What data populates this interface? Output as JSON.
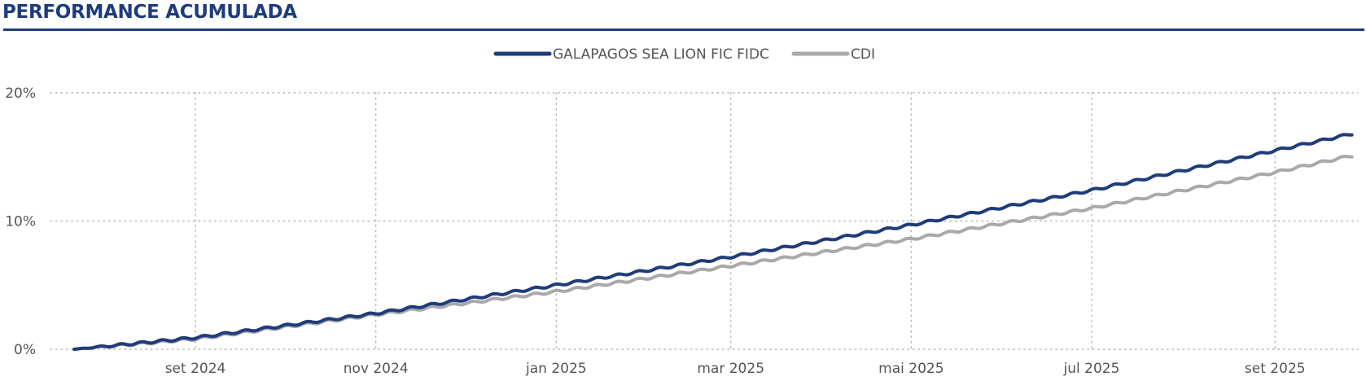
{
  "header": {
    "title": "PERFORMANCE ACUMULADA"
  },
  "chart_data": {
    "type": "line",
    "title": "PERFORMANCE ACUMULADA",
    "xlabel": "",
    "ylabel": "",
    "ylim": [
      0,
      20
    ],
    "xlim": [
      "2024-07-14",
      "2025-09-29"
    ],
    "y_ticks": [
      0,
      10,
      20
    ],
    "y_tick_labels": [
      "0%",
      "10%",
      "20%"
    ],
    "x_ticks": [
      "2024-09-01",
      "2024-11-01",
      "2025-01-01",
      "2025-03-01",
      "2025-05-01",
      "2025-07-01",
      "2025-09-01"
    ],
    "x_tick_labels": [
      "set 2024",
      "nov 2024",
      "jan 2025",
      "mar 2025",
      "mai 2025",
      "jul 2025",
      "set 2025"
    ],
    "grid": true,
    "legend_position": "top-center",
    "series": [
      {
        "name": "GALAPAGOS SEA LION FIC FIDC",
        "color": "#1f3c7a",
        "x": [
          "2024-07-22",
          "2024-09-01",
          "2024-11-01",
          "2025-01-01",
          "2025-03-01",
          "2025-05-01",
          "2025-07-01",
          "2025-09-01",
          "2025-09-27"
        ],
        "y": [
          0.0,
          0.9,
          2.8,
          5.0,
          7.2,
          9.7,
          12.4,
          15.5,
          16.8
        ]
      },
      {
        "name": "CDI",
        "color": "#a9a9ab",
        "x": [
          "2024-07-22",
          "2024-09-01",
          "2024-11-01",
          "2025-01-01",
          "2025-03-01",
          "2025-05-01",
          "2025-07-01",
          "2025-09-01",
          "2025-09-27"
        ],
        "y": [
          0.0,
          0.8,
          2.7,
          4.5,
          6.5,
          8.6,
          11.0,
          13.8,
          15.1
        ]
      }
    ]
  }
}
